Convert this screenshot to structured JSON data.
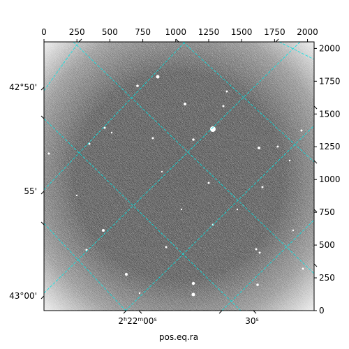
{
  "figure": {
    "xlabel": "pos.eq.ra",
    "colors": {
      "grid": "#00e5e5",
      "frame": "#000000",
      "background": "#ffffff"
    }
  },
  "image_axes": {
    "x_ticks": [
      "0",
      "250",
      "500",
      "750",
      "1000",
      "1250",
      "1500",
      "1750",
      "2000"
    ],
    "y_ticks": [
      "0",
      "250",
      "500",
      "750",
      "1000",
      "1250",
      "1500",
      "1750",
      "2000"
    ]
  },
  "sky_axes": {
    "dec_labels": [
      "42°50'",
      "55'",
      "43°00'"
    ],
    "ra_labels": [
      {
        "text": "2h22m00s",
        "html": "2<tspan baseline-shift='super' font-size='8'>h</tspan>22<tspan baseline-shift='super' font-size='8'>m</tspan>00<tspan baseline-shift='super' font-size='8'>s</tspan>"
      },
      {
        "text": "30s",
        "html": "30<tspan baseline-shift='super' font-size='8'>s</tspan>"
      }
    ]
  }
}
